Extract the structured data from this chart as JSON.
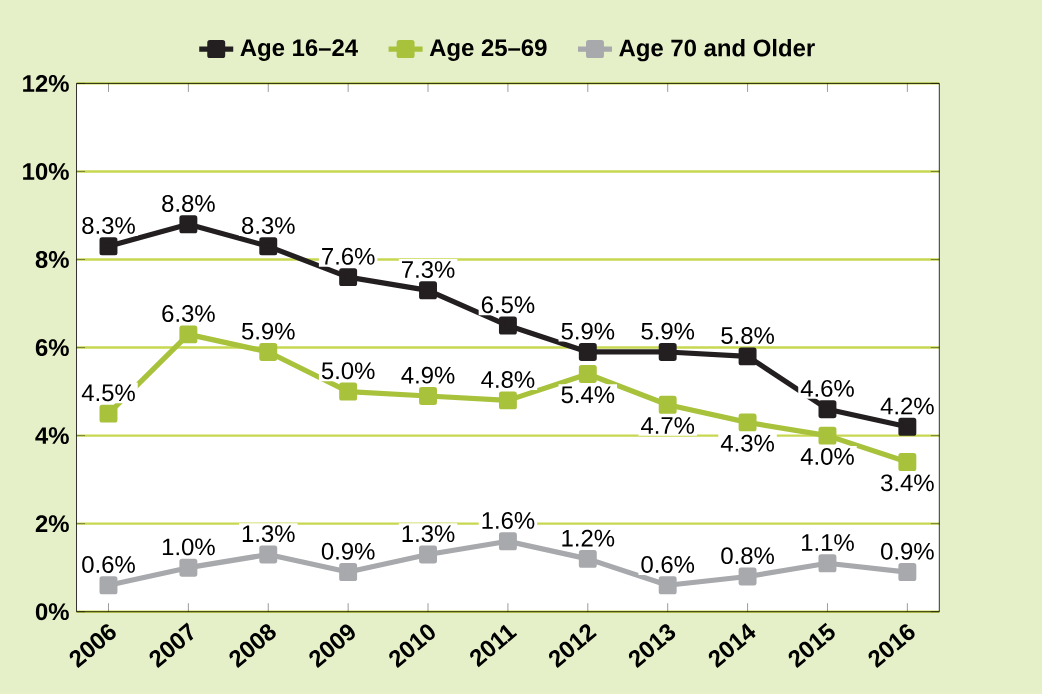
{
  "chart_data": {
    "type": "line",
    "categories": [
      "2006",
      "2007",
      "2008",
      "2009",
      "2010",
      "2011",
      "2012",
      "2013",
      "2014",
      "2015",
      "2016"
    ],
    "series": [
      {
        "name": "Age 16–24",
        "color": "#231f20",
        "values": [
          8.3,
          8.8,
          8.3,
          7.6,
          7.3,
          6.5,
          5.9,
          5.9,
          5.8,
          4.6,
          4.2
        ],
        "value_labels": [
          "8.3%",
          "8.8%",
          "8.3%",
          "7.6%",
          "7.3%",
          "6.5%",
          "5.9%",
          "5.9%",
          "5.8%",
          "4.6%",
          "4.2%"
        ]
      },
      {
        "name": "Age 25–69",
        "color": "#a8c23c",
        "values": [
          4.5,
          6.3,
          5.9,
          5.0,
          4.9,
          4.8,
          5.4,
          4.7,
          4.3,
          4.0,
          3.4
        ],
        "value_labels": [
          "4.5%",
          "6.3%",
          "5.9%",
          "5.0%",
          "4.9%",
          "4.8%",
          "5.4%",
          "4.7%",
          "4.3%",
          "4.0%",
          "3.4%"
        ]
      },
      {
        "name": "Age 70 and Older",
        "color": "#a7a9ac",
        "values": [
          0.6,
          1.0,
          1.3,
          0.9,
          1.3,
          1.6,
          1.2,
          0.6,
          0.8,
          1.1,
          0.9
        ],
        "value_labels": [
          "0.6%",
          "1.0%",
          "1.3%",
          "0.9%",
          "1.3%",
          "1.6%",
          "1.2%",
          "0.6%",
          "0.8%",
          "1.1%",
          "0.9%"
        ]
      }
    ],
    "ylim": [
      0,
      12
    ],
    "yticks": [
      {
        "value": 0,
        "label": "0%"
      },
      {
        "value": 2,
        "label": "2%"
      },
      {
        "value": 4,
        "label": "4%"
      },
      {
        "value": 6,
        "label": "6%"
      },
      {
        "value": 8,
        "label": "8%"
      },
      {
        "value": 10,
        "label": "10%"
      },
      {
        "value": 12,
        "label": "12%"
      }
    ],
    "grid": "y",
    "legend": "top",
    "marker": "square",
    "line_style": "solid"
  }
}
